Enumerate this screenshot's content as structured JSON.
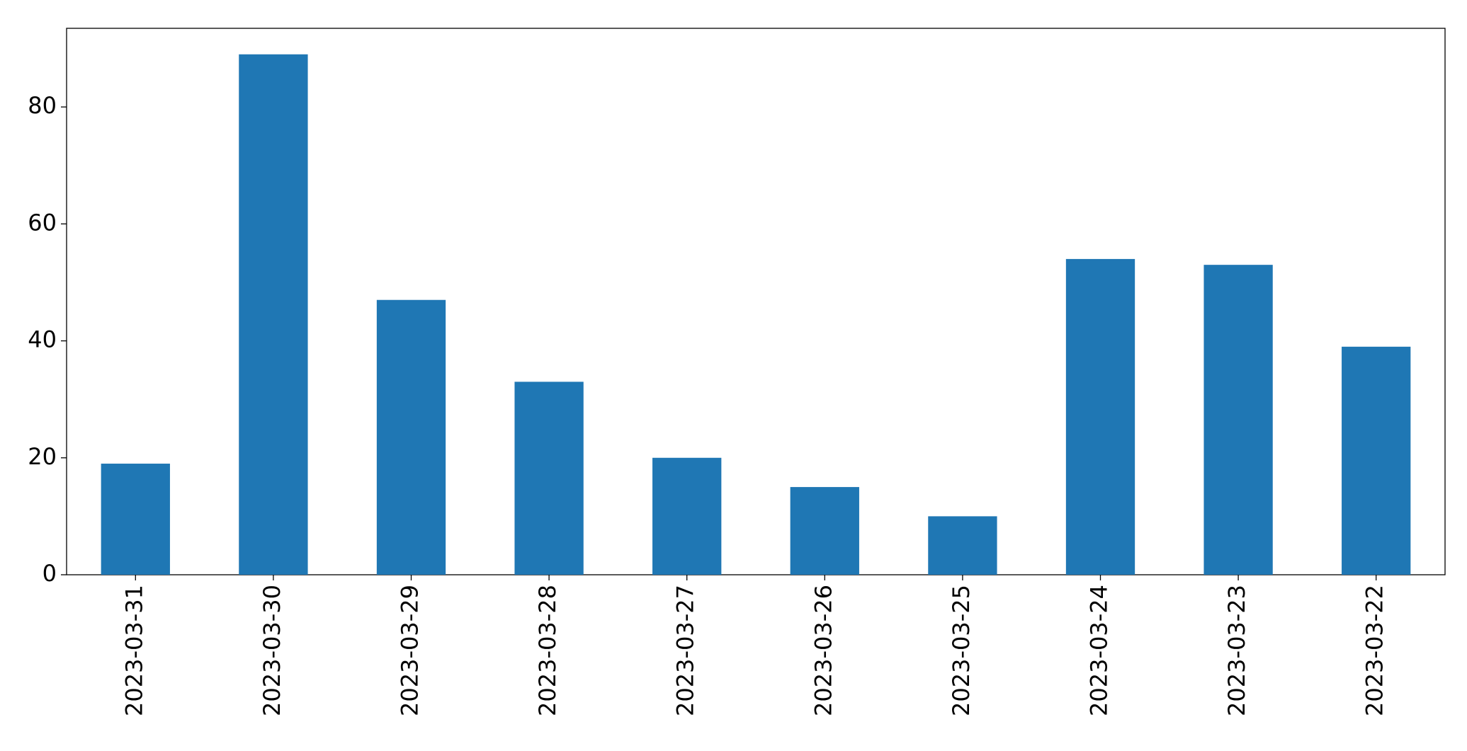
{
  "chart_data": {
    "type": "bar",
    "categories": [
      "2023-03-31",
      "2023-03-30",
      "2023-03-29",
      "2023-03-28",
      "2023-03-27",
      "2023-03-26",
      "2023-03-25",
      "2023-03-24",
      "2023-03-23",
      "2023-03-22"
    ],
    "values": [
      19,
      89,
      47,
      33,
      20,
      15,
      10,
      54,
      53,
      39
    ],
    "color": "#1f77b4",
    "ylim": [
      0,
      93.45
    ],
    "yticks": [
      0,
      20,
      40,
      60,
      80
    ],
    "grid": false
  }
}
